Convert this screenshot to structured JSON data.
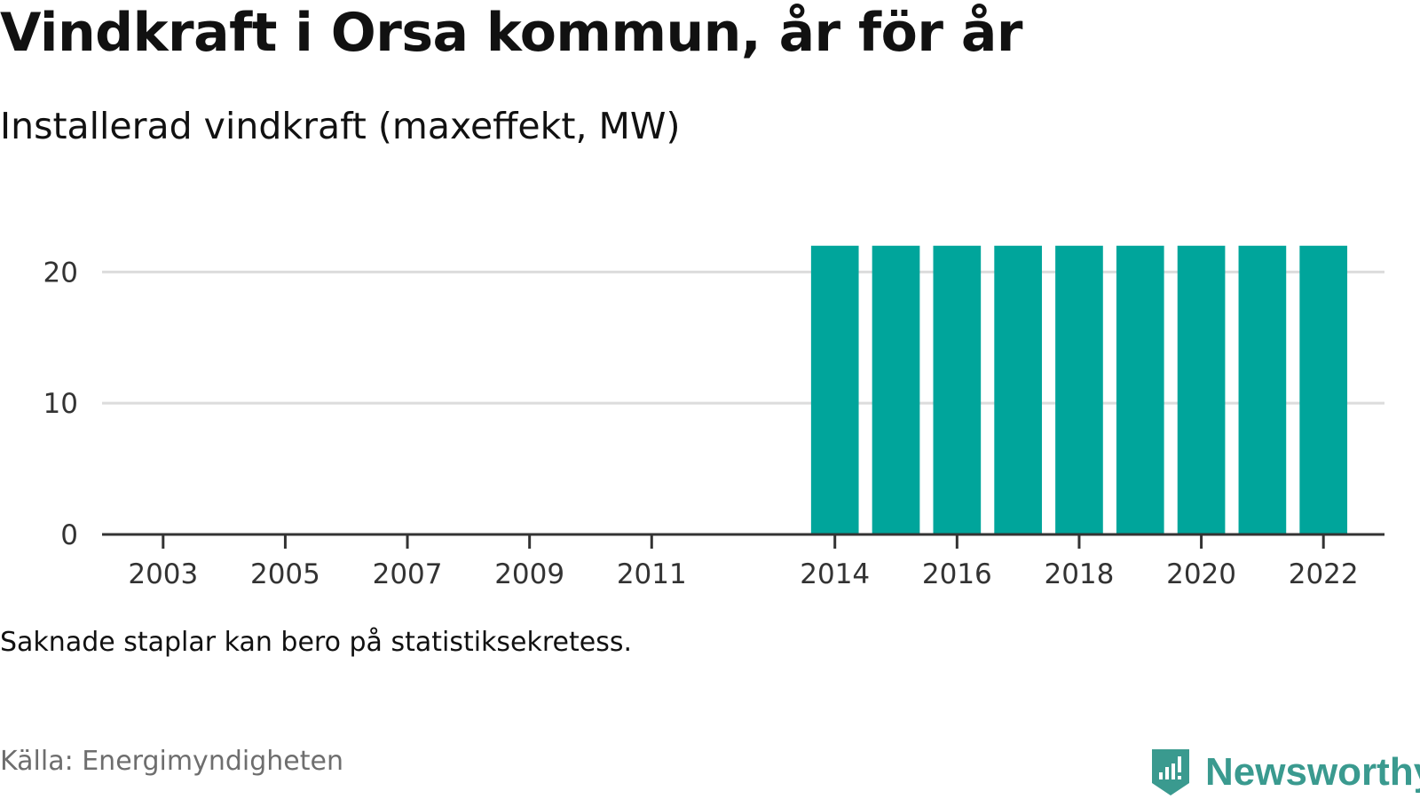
{
  "title": "Vindkraft i Orsa kommun, år för år",
  "subtitle": "Installerad vindkraft (maxeffekt, MW)",
  "note": "Saknade staplar kan bero på statistiksekretess.",
  "source": "Källa: Energimyndigheten",
  "brand": {
    "name": "Newsworthy",
    "icon": "newsworthy-logo-icon",
    "color": "#3a9a8f"
  },
  "chart_data": {
    "type": "bar",
    "title": "",
    "xlabel": "",
    "ylabel": "",
    "bar_color": "#00a59b",
    "categories": [
      "2014",
      "2015",
      "2016",
      "2017",
      "2018",
      "2019",
      "2020",
      "2021",
      "2022"
    ],
    "values": [
      22,
      22,
      22,
      22,
      22,
      22,
      22,
      22,
      22
    ],
    "xlim": [
      2002,
      2023
    ],
    "ylim": [
      0,
      23
    ],
    "y_ticks": [
      "0",
      "10",
      "20"
    ],
    "x_ticks": [
      "2003",
      "2005",
      "2007",
      "2009",
      "2011",
      "2014",
      "2016",
      "2018",
      "2020",
      "2022"
    ],
    "grid": true,
    "legend": "none"
  }
}
